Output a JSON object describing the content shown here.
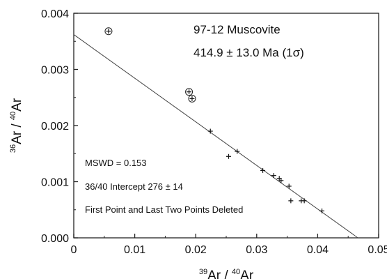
{
  "chart_data": {
    "type": "scatter",
    "title": "97-12  Muscovite",
    "subtitle": "414.9 ± 13.0 Ma (1σ)",
    "xlabel": {
      "sup1": "39",
      "main1": "Ar / ",
      "sup2": "40",
      "main2": "Ar"
    },
    "ylabel": {
      "sup1": "36",
      "main1": "Ar / ",
      "sup2": "40",
      "main2": "Ar"
    },
    "xlim": [
      0,
      0.05
    ],
    "ylim": [
      0,
      0.004
    ],
    "x_ticks": [
      "0",
      "0.01",
      "0.02",
      "0.03",
      "0.04",
      "0.05"
    ],
    "y_ticks": [
      "0.000",
      "0.001",
      "0.002",
      "0.003",
      "0.004"
    ],
    "annotations": [
      "MSWD = 0.153",
      "36/40 Intercept 276 ± 14",
      "First Point and Last Two Points Deleted"
    ],
    "fit_line": {
      "x": [
        0,
        0.0466
      ],
      "y": [
        0.00362,
        0.0
      ]
    },
    "series": [
      {
        "marker": "plus",
        "x": [
          0.0224,
          0.0254,
          0.0268,
          0.031,
          0.0328,
          0.0337,
          0.034,
          0.0353,
          0.0356,
          0.0373,
          0.0378,
          0.0407
        ],
        "y": [
          0.0019,
          0.00145,
          0.00154,
          0.0012,
          0.00111,
          0.00106,
          0.00102,
          0.00092,
          0.00066,
          0.00066,
          0.00066,
          0.00048
        ]
      },
      {
        "marker": "circle-plus",
        "x": [
          0.0057,
          0.0189,
          0.0194
        ],
        "y": [
          0.00368,
          0.0026,
          0.00248
        ]
      }
    ],
    "grid": false,
    "legend": "none"
  }
}
